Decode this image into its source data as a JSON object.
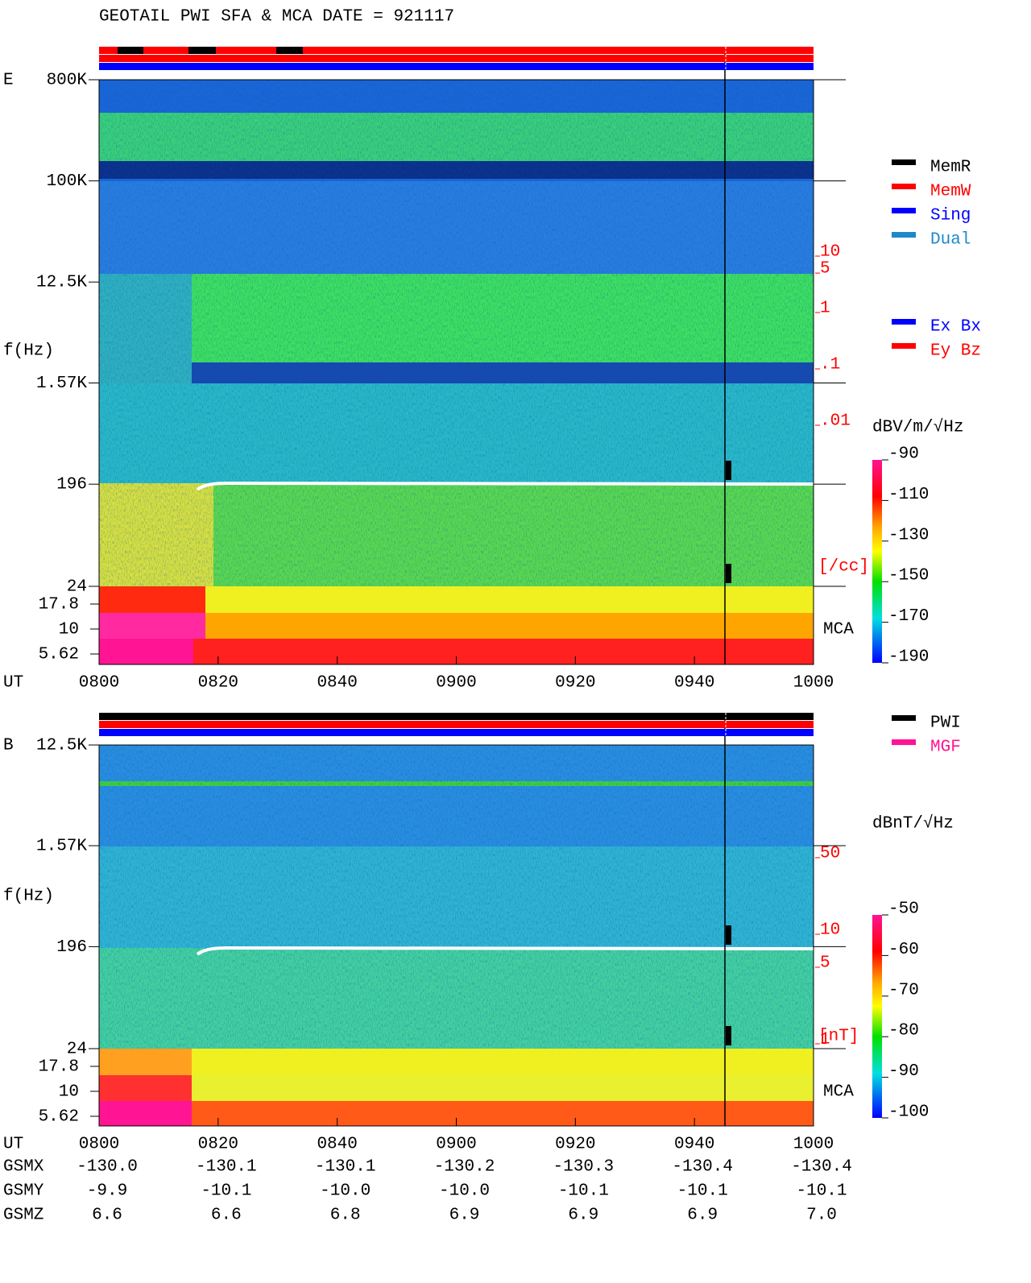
{
  "chart_data": [
    {
      "type": "spectrogram",
      "title": "GEOTAIL  PWI SFA & MCA   DATE = 921117",
      "panel_label": "E",
      "ylabel": "f(Hz)",
      "xlabel": "UT",
      "log_scale": true,
      "xlim": [
        480,
        600
      ],
      "xticks": [
        {
          "value": 480,
          "label": "0800"
        },
        {
          "value": 500,
          "label": "0820"
        },
        {
          "value": 520,
          "label": "0840"
        },
        {
          "value": 540,
          "label": "0900"
        },
        {
          "value": 560,
          "label": "0920"
        },
        {
          "value": 580,
          "label": "0940"
        },
        {
          "value": 600,
          "label": "1000"
        }
      ],
      "ylim": [
        24,
        800000
      ],
      "yticks": [
        {
          "value": 800000,
          "label": "800K"
        },
        {
          "value": 100000,
          "label": "100K"
        },
        {
          "value": 12500,
          "label": "12.5K"
        },
        {
          "value": 1570,
          "label": "1.57K"
        },
        196,
        24
      ],
      "mca_label": "MCA",
      "mca_ticks": [
        17.8,
        10,
        5.62
      ],
      "density_unit": "[/cc]",
      "density_ticks": [
        10,
        5,
        1,
        {
          "value": 0.1,
          "label": ".1"
        },
        {
          "value": 0.01,
          "label": ".01"
        }
      ],
      "colorbar_label": "dBV/m/√Hz",
      "colorbar_ticks": [
        -90,
        -110,
        -130,
        -150,
        -170,
        -190
      ],
      "legend": [
        {
          "name": "MemR",
          "color": "#000000"
        },
        {
          "name": "MemW",
          "color": "#ff0000"
        },
        {
          "name": "Sing",
          "color": "#0000ff"
        },
        {
          "name": "Dual",
          "color": "#1e88c8"
        }
      ],
      "legend2": [
        {
          "name": "Ex Bx",
          "color": "#0000ff"
        },
        {
          "name": "Ey Bz",
          "color": "#ff0000"
        }
      ]
    },
    {
      "type": "spectrogram",
      "panel_label": "B",
      "ylabel": "f(Hz)",
      "xlabel": "UT",
      "log_scale": true,
      "xlim": [
        480,
        600
      ],
      "xticks": [
        {
          "value": 480,
          "label": "0800"
        },
        {
          "value": 500,
          "label": "0820"
        },
        {
          "value": 520,
          "label": "0840"
        },
        {
          "value": 540,
          "label": "0900"
        },
        {
          "value": 560,
          "label": "0920"
        },
        {
          "value": 580,
          "label": "0940"
        },
        {
          "value": 600,
          "label": "1000"
        }
      ],
      "ylim": [
        24,
        12500
      ],
      "yticks": [
        {
          "value": 12500,
          "label": "12.5K"
        },
        {
          "value": 1570,
          "label": "1.57K"
        },
        196,
        24
      ],
      "mca_label": "MCA",
      "mca_ticks": [
        17.8,
        10,
        5.62
      ],
      "density_unit": "[nT]",
      "density_ticks": [
        50,
        10,
        5,
        1
      ],
      "colorbar_label": "dBnT/√Hz",
      "colorbar_ticks": [
        -50,
        -60,
        -70,
        -80,
        -90,
        -100
      ],
      "legend": [
        {
          "name": "PWI",
          "color": "#000000"
        },
        {
          "name": "MGF",
          "color": "#ff1493"
        }
      ],
      "ephemeris": [
        {
          "label": "GSMX",
          "values": [
            -130.0,
            -130.1,
            -130.1,
            -130.2,
            -130.3,
            -130.4,
            -130.4
          ],
          "value_labels": [
            "-130.0",
            "-130.1",
            "-130.1",
            "-130.2",
            "-130.3",
            "-130.4",
            "-130.4"
          ]
        },
        {
          "label": "GSMY",
          "values": [
            -9.9,
            -10.1,
            -10.0,
            -10.0,
            -10.1,
            -10.1,
            -10.1
          ],
          "value_labels": [
            "-9.9",
            "-10.1",
            "-10.0",
            "-10.0",
            "-10.1",
            "-10.1",
            "-10.1"
          ]
        },
        {
          "label": "GSMZ",
          "values": [
            6.6,
            6.6,
            6.8,
            6.9,
            6.9,
            6.9,
            7.0
          ],
          "value_labels": [
            "6.6",
            "6.6",
            "6.8",
            "6.9",
            "6.9",
            "6.9",
            "7.0"
          ]
        }
      ]
    }
  ]
}
